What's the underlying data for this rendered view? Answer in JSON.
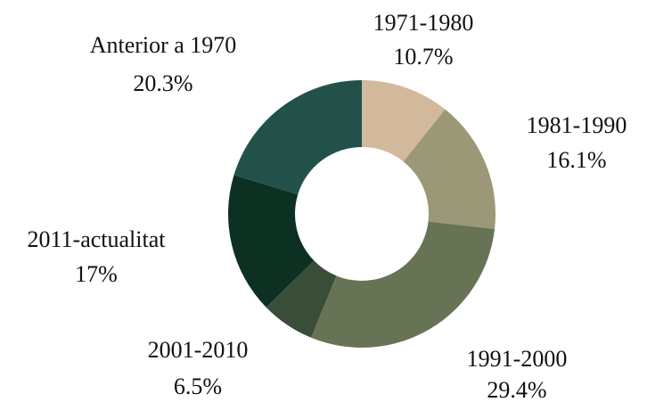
{
  "chart_data": {
    "type": "donut",
    "categories": [
      "1971-1980",
      "1981-1990",
      "1991-2000",
      "2001-2010",
      "2011-actualitat",
      "Anterior a 1970"
    ],
    "values": [
      10.7,
      16.1,
      29.4,
      6.5,
      17,
      20.3
    ],
    "value_labels": [
      "10.7%",
      "16.1%",
      "29.4%",
      "6.5%",
      "17%",
      "20.3%"
    ],
    "colors": [
      "#d2b99c",
      "#9b9878",
      "#667455",
      "#3a4d38",
      "#0c3022",
      "#23514a"
    ]
  }
}
